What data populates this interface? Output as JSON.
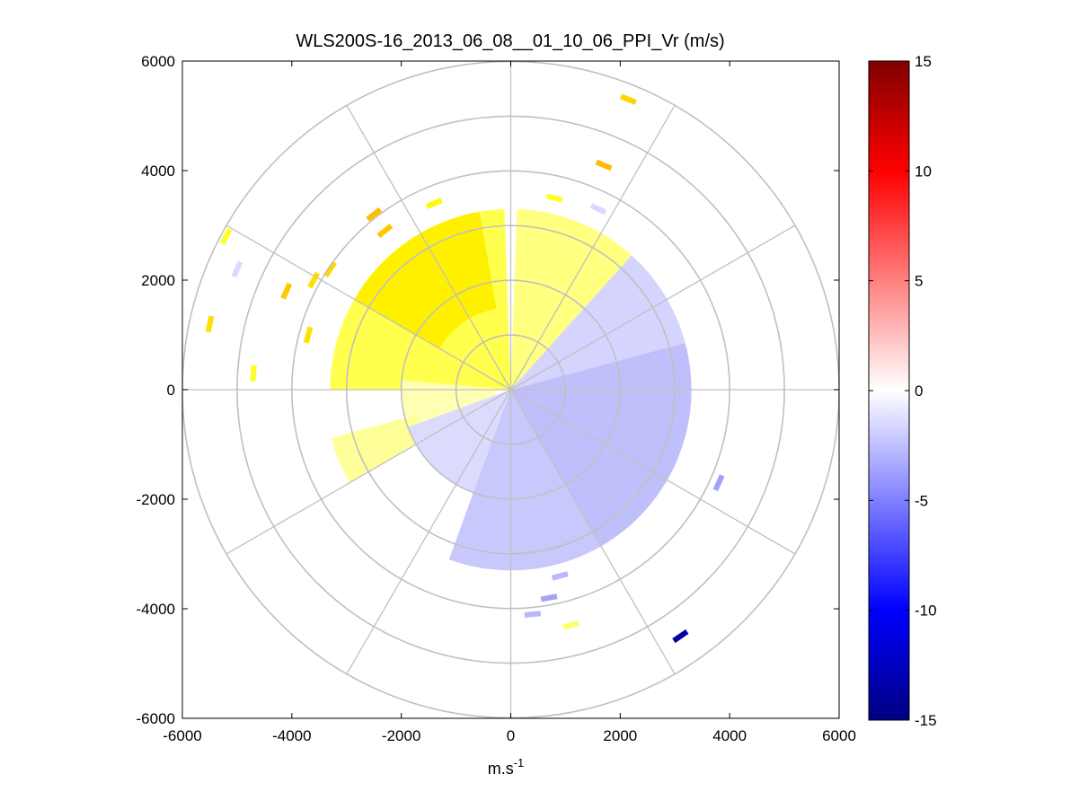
{
  "chart_data": {
    "type": "heatmap",
    "title": "WLS200S-16_2013_06_08__01_10_06_PPI_Vr (m/s)",
    "xlabel_base": "m.s",
    "xlabel_exp": "-1",
    "xlim": [
      -6000,
      6000
    ],
    "ylim": [
      -6000,
      6000
    ],
    "x_ticks": [
      "-6000",
      "-4000",
      "-2000",
      "0",
      "2000",
      "4000",
      "6000"
    ],
    "y_ticks": [
      "6000",
      "4000",
      "2000",
      "0",
      "-2000",
      "-4000",
      "-6000"
    ],
    "polar_grid": {
      "ring_radii": [
        1000,
        2000,
        3000,
        4000,
        5000,
        6000
      ],
      "spoke_angles_deg": [
        0,
        30,
        60,
        90,
        120,
        150,
        180,
        210,
        240,
        270,
        300,
        330
      ]
    },
    "colorbar": {
      "range": [
        -15,
        15
      ],
      "ticks": [
        "15",
        "10",
        "5",
        "0",
        "-5",
        "-10",
        "-15"
      ]
    },
    "sectors": [
      {
        "az_from": 270,
        "az_to": 358,
        "r_from": 0,
        "r_to": 3300,
        "vr": 1.2
      },
      {
        "az_from": 300,
        "az_to": 350,
        "r_from": 1500,
        "r_to": 3300,
        "vr": 2.4
      },
      {
        "az_from": 250,
        "az_to": 275,
        "r_from": 300,
        "r_to": 2000,
        "vr": 0.4
      },
      {
        "az_from": 240,
        "az_to": 255,
        "r_from": 1800,
        "r_to": 3400,
        "vr": 0.6
      },
      {
        "az_from": 2,
        "az_to": 42,
        "r_from": 0,
        "r_to": 3300,
        "vr": 0.8
      },
      {
        "az_from": 42,
        "az_to": 75,
        "r_from": 0,
        "r_to": 3300,
        "vr": -0.6
      },
      {
        "az_from": 75,
        "az_to": 150,
        "r_from": 0,
        "r_to": 3300,
        "vr": -1.6
      },
      {
        "az_from": 150,
        "az_to": 200,
        "r_from": 0,
        "r_to": 3300,
        "vr": -1.2
      },
      {
        "az_from": 200,
        "az_to": 250,
        "r_from": 0,
        "r_to": 2000,
        "vr": -0.3
      }
    ],
    "scatter": [
      {
        "x": -5500,
        "y": 1200,
        "vr": 3.0
      },
      {
        "x": -5200,
        "y": 2800,
        "vr": 1.5
      },
      {
        "x": -5000,
        "y": 2200,
        "vr": -0.4
      },
      {
        "x": -4700,
        "y": 300,
        "vr": 1.5
      },
      {
        "x": -4100,
        "y": 1800,
        "vr": 4.0
      },
      {
        "x": -3600,
        "y": 2000,
        "vr": 3.0
      },
      {
        "x": -3700,
        "y": 1000,
        "vr": 3.0
      },
      {
        "x": -3300,
        "y": 2200,
        "vr": 3.5
      },
      {
        "x": -2500,
        "y": 3200,
        "vr": 4.5
      },
      {
        "x": -2300,
        "y": 2900,
        "vr": 4.0
      },
      {
        "x": -1400,
        "y": 3400,
        "vr": 2.0
      },
      {
        "x": 800,
        "y": 3500,
        "vr": 1.5
      },
      {
        "x": 1600,
        "y": 3300,
        "vr": -0.4
      },
      {
        "x": 1700,
        "y": 4100,
        "vr": 4.5
      },
      {
        "x": 2150,
        "y": 5300,
        "vr": 3.5
      },
      {
        "x": 3800,
        "y": -1700,
        "vr": -3.0
      },
      {
        "x": 900,
        "y": -3400,
        "vr": -2.0
      },
      {
        "x": 700,
        "y": -3800,
        "vr": -3.0
      },
      {
        "x": 400,
        "y": -4100,
        "vr": -2.0
      },
      {
        "x": 1100,
        "y": -4300,
        "vr": 1.0
      },
      {
        "x": 3100,
        "y": -4500,
        "vr": -13.0
      }
    ]
  }
}
